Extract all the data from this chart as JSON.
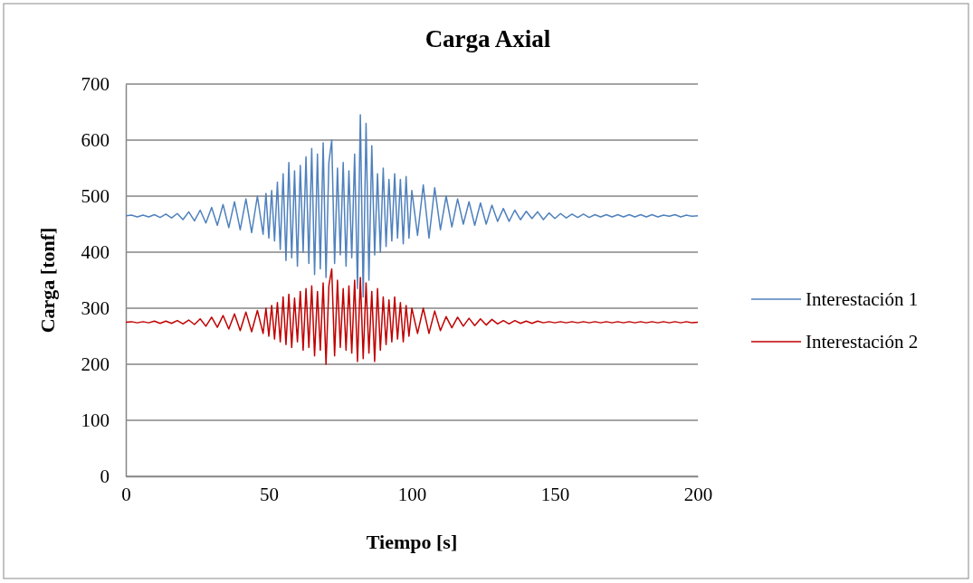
{
  "chart_data": {
    "type": "line",
    "title": "Carga Axial",
    "xlabel": "Tiempo [s]",
    "ylabel": "Carga [tonf]",
    "x": [
      0,
      2,
      4,
      6,
      8,
      10,
      12,
      14,
      16,
      18,
      20,
      22,
      24,
      26,
      28,
      30,
      32,
      34,
      36,
      38,
      40,
      42,
      44,
      46,
      48,
      49,
      50,
      51,
      52,
      53,
      54,
      55,
      56,
      57,
      58,
      59,
      60,
      61,
      62,
      63,
      64,
      65,
      66,
      67,
      68,
      69,
      70,
      71,
      72,
      73,
      74,
      75,
      76,
      77,
      78,
      79,
      80,
      81,
      82,
      83,
      84,
      85,
      86,
      87,
      88,
      89,
      90,
      91,
      92,
      93,
      94,
      95,
      96,
      97,
      98,
      99,
      100,
      102,
      104,
      106,
      108,
      110,
      112,
      114,
      116,
      118,
      120,
      122,
      124,
      126,
      128,
      130,
      132,
      134,
      136,
      138,
      140,
      142,
      144,
      146,
      148,
      150,
      152,
      154,
      156,
      158,
      160,
      162,
      164,
      166,
      168,
      170,
      172,
      174,
      176,
      178,
      180,
      182,
      184,
      186,
      188,
      190,
      192,
      194,
      196,
      198,
      200
    ],
    "series": [
      {
        "name": "Interestación 1",
        "color": "#4f81bd",
        "values": [
          465,
          466,
          463,
          466,
          463,
          467,
          462,
          468,
          461,
          469,
          458,
          472,
          456,
          475,
          452,
          480,
          448,
          485,
          444,
          490,
          440,
          495,
          435,
          500,
          432,
          505,
          425,
          510,
          420,
          525,
          405,
          540,
          385,
          560,
          390,
          545,
          375,
          555,
          400,
          570,
          380,
          585,
          360,
          575,
          370,
          595,
          355,
          560,
          600,
          380,
          550,
          395,
          560,
          375,
          545,
          390,
          575,
          335,
          645,
          320,
          630,
          350,
          590,
          395,
          540,
          400,
          550,
          410,
          530,
          420,
          540,
          425,
          530,
          415,
          535,
          425,
          510,
          430,
          520,
          425,
          515,
          440,
          500,
          445,
          495,
          450,
          490,
          448,
          488,
          450,
          484,
          455,
          478,
          455,
          475,
          458,
          473,
          460,
          472,
          458,
          470,
          460,
          469,
          461,
          468,
          462,
          468,
          462,
          467,
          463,
          467,
          463,
          467,
          463,
          467,
          463,
          467,
          463,
          467,
          463,
          466,
          464,
          467,
          463,
          466,
          464,
          465
        ]
      },
      {
        "name": "Interestación 2",
        "color": "#c00000",
        "values": [
          275,
          276,
          274,
          276,
          274,
          277,
          273,
          277,
          273,
          278,
          272,
          279,
          271,
          281,
          268,
          284,
          266,
          287,
          263,
          290,
          260,
          293,
          258,
          296,
          255,
          300,
          250,
          305,
          245,
          310,
          240,
          320,
          235,
          325,
          230,
          318,
          240,
          330,
          225,
          335,
          230,
          340,
          215,
          330,
          225,
          345,
          200,
          340,
          370,
          215,
          350,
          230,
          335,
          225,
          340,
          220,
          350,
          205,
          355,
          210,
          345,
          220,
          330,
          205,
          335,
          225,
          320,
          235,
          315,
          240,
          320,
          245,
          310,
          240,
          305,
          250,
          300,
          255,
          300,
          255,
          295,
          260,
          285,
          265,
          284,
          268,
          282,
          269,
          281,
          270,
          280,
          272,
          278,
          272,
          278,
          273,
          277,
          273,
          277,
          274,
          276,
          274,
          276,
          274,
          276,
          274,
          276,
          274,
          276,
          274,
          276,
          274,
          276,
          274,
          276,
          274,
          276,
          274,
          276,
          274,
          276,
          274,
          276,
          274,
          276,
          274,
          275
        ]
      }
    ],
    "xlim": [
      0,
      200
    ],
    "xticks": [
      0,
      50,
      100,
      150,
      200
    ],
    "ylim": [
      0,
      700
    ],
    "yticks": [
      0,
      100,
      200,
      300,
      400,
      500,
      600,
      700
    ],
    "grid": "y",
    "legend": "right",
    "marker": "none",
    "line_style": "solid"
  }
}
